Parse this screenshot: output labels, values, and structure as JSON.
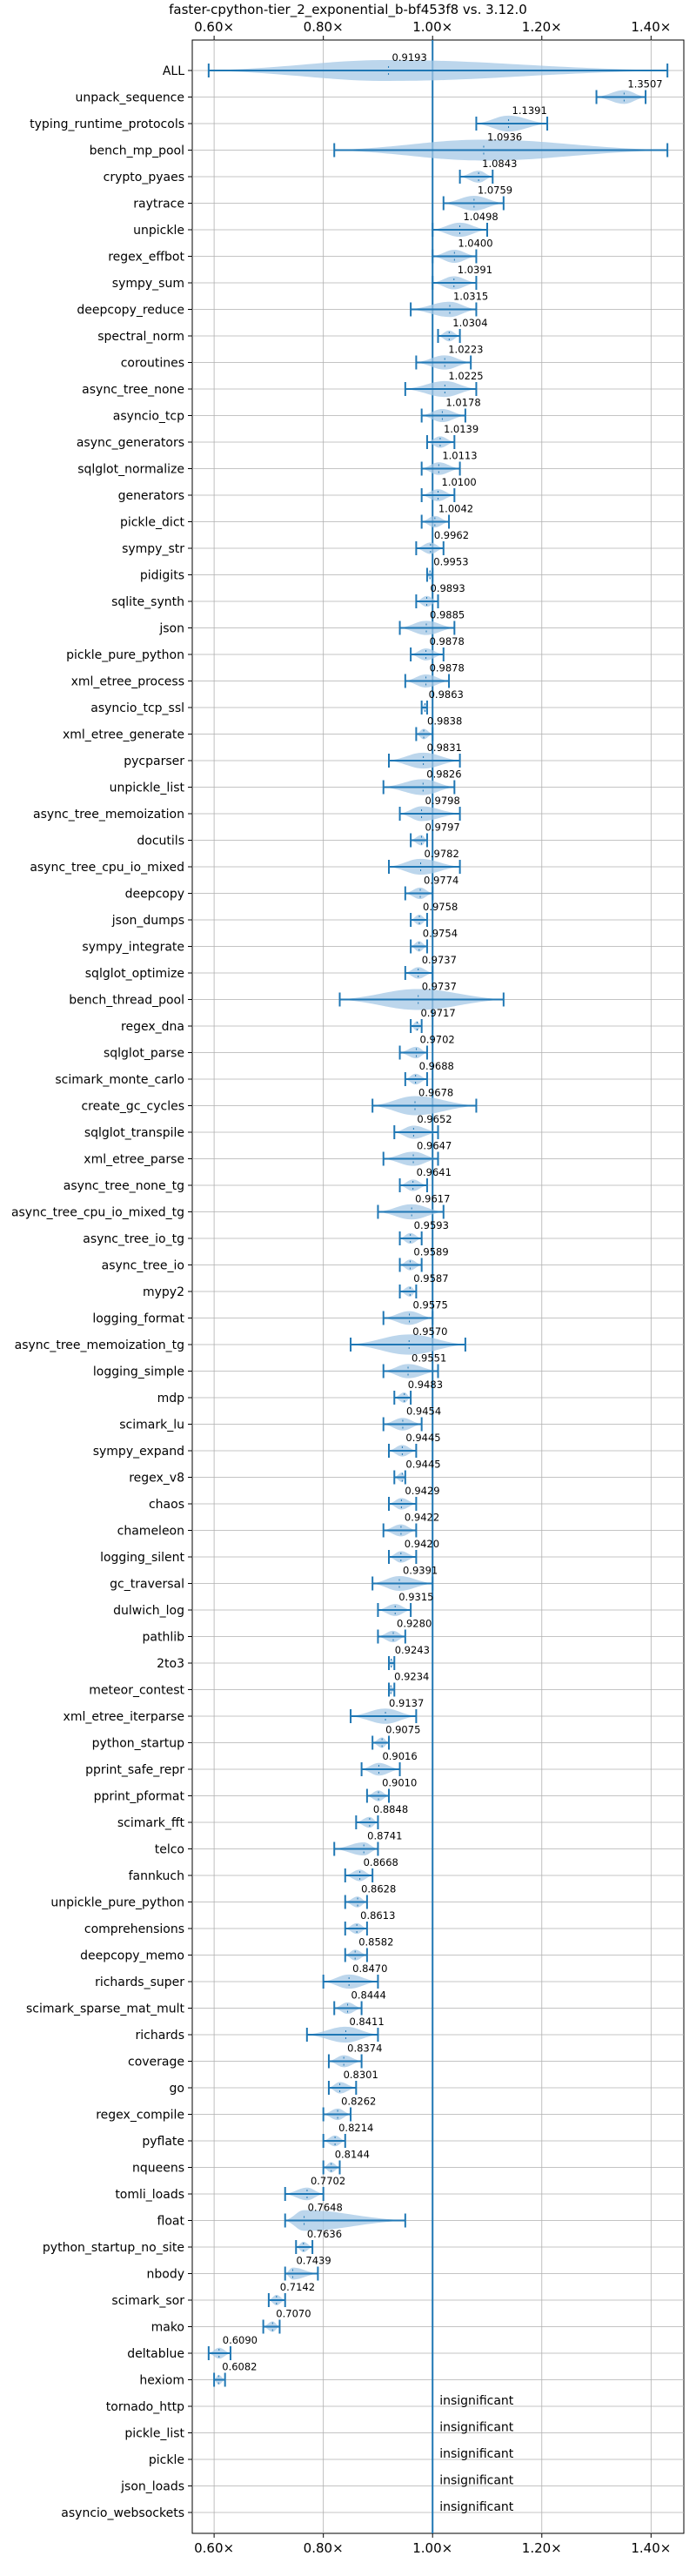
{
  "chart_data": {
    "type": "violin",
    "title": "faster-cpython-tier_2_exponential_b-bf453f8 vs. 3.12.0",
    "xlabel": "",
    "ylabel": "",
    "x_range": [
      0.56,
      1.46
    ],
    "x_scale": "linear",
    "ticks": [
      {
        "value": 0.6,
        "label": "0.60×"
      },
      {
        "value": 0.8,
        "label": "0.80×"
      },
      {
        "value": 1.0,
        "label": "1.00×"
      },
      {
        "value": 1.2,
        "label": "1.20×"
      },
      {
        "value": 1.4,
        "label": "1.40×"
      }
    ],
    "reference_line": 1.0,
    "grid": true,
    "colors": {
      "violin": "#a6c8e6",
      "line": "#1f77b4"
    },
    "benchmarks": [
      {
        "name": "ALL",
        "label": "0.9193",
        "value": 0.9193,
        "min": 0.59,
        "max": 1.43
      },
      {
        "name": "unpack_sequence",
        "label": "1.3507",
        "value": 1.3507,
        "min": 1.3,
        "max": 1.39
      },
      {
        "name": "typing_runtime_protocols",
        "label": "1.1391",
        "value": 1.1391,
        "min": 1.08,
        "max": 1.21
      },
      {
        "name": "bench_mp_pool",
        "label": "1.0936",
        "value": 1.0936,
        "min": 0.82,
        "max": 1.43
      },
      {
        "name": "crypto_pyaes",
        "label": "1.0843",
        "value": 1.0843,
        "min": 1.05,
        "max": 1.11
      },
      {
        "name": "raytrace",
        "label": "1.0759",
        "value": 1.0759,
        "min": 1.02,
        "max": 1.13
      },
      {
        "name": "unpickle",
        "label": "1.0498",
        "value": 1.0498,
        "min": 1.0,
        "max": 1.1
      },
      {
        "name": "regex_effbot",
        "label": "1.0400",
        "value": 1.04,
        "min": 1.0,
        "max": 1.08
      },
      {
        "name": "sympy_sum",
        "label": "1.0391",
        "value": 1.0391,
        "min": 1.0,
        "max": 1.08
      },
      {
        "name": "deepcopy_reduce",
        "label": "1.0315",
        "value": 1.0315,
        "min": 0.96,
        "max": 1.08
      },
      {
        "name": "spectral_norm",
        "label": "1.0304",
        "value": 1.0304,
        "min": 1.01,
        "max": 1.05
      },
      {
        "name": "coroutines",
        "label": "1.0223",
        "value": 1.0223,
        "min": 0.97,
        "max": 1.07
      },
      {
        "name": "async_tree_none",
        "label": "1.0225",
        "value": 1.0225,
        "min": 0.95,
        "max": 1.08
      },
      {
        "name": "asyncio_tcp",
        "label": "1.0178",
        "value": 1.0178,
        "min": 0.98,
        "max": 1.06
      },
      {
        "name": "async_generators",
        "label": "1.0139",
        "value": 1.0139,
        "min": 0.99,
        "max": 1.04
      },
      {
        "name": "sqlglot_normalize",
        "label": "1.0113",
        "value": 1.0113,
        "min": 0.98,
        "max": 1.05
      },
      {
        "name": "generators",
        "label": "1.0100",
        "value": 1.01,
        "min": 0.98,
        "max": 1.04
      },
      {
        "name": "pickle_dict",
        "label": "1.0042",
        "value": 1.0042,
        "min": 0.98,
        "max": 1.03
      },
      {
        "name": "sympy_str",
        "label": "0.9962",
        "value": 0.9962,
        "min": 0.97,
        "max": 1.02
      },
      {
        "name": "pidigits",
        "label": "0.9953",
        "value": 0.9953,
        "min": 0.99,
        "max": 1.0
      },
      {
        "name": "sqlite_synth",
        "label": "0.9893",
        "value": 0.9893,
        "min": 0.97,
        "max": 1.01
      },
      {
        "name": "json",
        "label": "0.9885",
        "value": 0.9885,
        "min": 0.94,
        "max": 1.04
      },
      {
        "name": "pickle_pure_python",
        "label": "0.9878",
        "value": 0.9878,
        "min": 0.96,
        "max": 1.02
      },
      {
        "name": "xml_etree_process",
        "label": "0.9878",
        "value": 0.9878,
        "min": 0.95,
        "max": 1.03
      },
      {
        "name": "asyncio_tcp_ssl",
        "label": "0.9863",
        "value": 0.9863,
        "min": 0.98,
        "max": 0.99
      },
      {
        "name": "xml_etree_generate",
        "label": "0.9838",
        "value": 0.9838,
        "min": 0.97,
        "max": 1.0
      },
      {
        "name": "pycparser",
        "label": "0.9831",
        "value": 0.9831,
        "min": 0.92,
        "max": 1.05
      },
      {
        "name": "unpickle_list",
        "label": "0.9826",
        "value": 0.9826,
        "min": 0.91,
        "max": 1.04
      },
      {
        "name": "async_tree_memoization",
        "label": "0.9798",
        "value": 0.9798,
        "min": 0.94,
        "max": 1.05
      },
      {
        "name": "docutils",
        "label": "0.9797",
        "value": 0.9797,
        "min": 0.96,
        "max": 0.99
      },
      {
        "name": "async_tree_cpu_io_mixed",
        "label": "0.9782",
        "value": 0.9782,
        "min": 0.92,
        "max": 1.05
      },
      {
        "name": "deepcopy",
        "label": "0.9774",
        "value": 0.9774,
        "min": 0.95,
        "max": 1.0
      },
      {
        "name": "json_dumps",
        "label": "0.9758",
        "value": 0.9758,
        "min": 0.96,
        "max": 0.99
      },
      {
        "name": "sympy_integrate",
        "label": "0.9754",
        "value": 0.9754,
        "min": 0.96,
        "max": 0.99
      },
      {
        "name": "sqlglot_optimize",
        "label": "0.9737",
        "value": 0.9737,
        "min": 0.95,
        "max": 1.0
      },
      {
        "name": "bench_thread_pool",
        "label": "0.9737",
        "value": 0.9737,
        "min": 0.83,
        "max": 1.13
      },
      {
        "name": "regex_dna",
        "label": "0.9717",
        "value": 0.9717,
        "min": 0.96,
        "max": 0.98
      },
      {
        "name": "sqlglot_parse",
        "label": "0.9702",
        "value": 0.9702,
        "min": 0.94,
        "max": 0.99
      },
      {
        "name": "scimark_monte_carlo",
        "label": "0.9688",
        "value": 0.9688,
        "min": 0.95,
        "max": 0.99
      },
      {
        "name": "create_gc_cycles",
        "label": "0.9678",
        "value": 0.9678,
        "min": 0.89,
        "max": 1.08
      },
      {
        "name": "sqlglot_transpile",
        "label": "0.9652",
        "value": 0.9652,
        "min": 0.93,
        "max": 1.01
      },
      {
        "name": "xml_etree_parse",
        "label": "0.9647",
        "value": 0.9647,
        "min": 0.91,
        "max": 1.01
      },
      {
        "name": "async_tree_none_tg",
        "label": "0.9641",
        "value": 0.9641,
        "min": 0.94,
        "max": 0.99
      },
      {
        "name": "async_tree_cpu_io_mixed_tg",
        "label": "0.9617",
        "value": 0.9617,
        "min": 0.9,
        "max": 1.02
      },
      {
        "name": "async_tree_io_tg",
        "label": "0.9593",
        "value": 0.9593,
        "min": 0.94,
        "max": 0.98
      },
      {
        "name": "async_tree_io",
        "label": "0.9589",
        "value": 0.9589,
        "min": 0.94,
        "max": 0.98
      },
      {
        "name": "mypy2",
        "label": "0.9587",
        "value": 0.9587,
        "min": 0.94,
        "max": 0.97
      },
      {
        "name": "logging_format",
        "label": "0.9575",
        "value": 0.9575,
        "min": 0.91,
        "max": 1.0
      },
      {
        "name": "async_tree_memoization_tg",
        "label": "0.9570",
        "value": 0.957,
        "min": 0.85,
        "max": 1.06
      },
      {
        "name": "logging_simple",
        "label": "0.9551",
        "value": 0.9551,
        "min": 0.91,
        "max": 1.01
      },
      {
        "name": "mdp",
        "label": "0.9483",
        "value": 0.9483,
        "min": 0.93,
        "max": 0.96
      },
      {
        "name": "scimark_lu",
        "label": "0.9454",
        "value": 0.9454,
        "min": 0.91,
        "max": 0.98
      },
      {
        "name": "sympy_expand",
        "label": "0.9445",
        "value": 0.9445,
        "min": 0.92,
        "max": 0.97
      },
      {
        "name": "regex_v8",
        "label": "0.9445",
        "value": 0.9445,
        "min": 0.93,
        "max": 0.95
      },
      {
        "name": "chaos",
        "label": "0.9429",
        "value": 0.9429,
        "min": 0.92,
        "max": 0.97
      },
      {
        "name": "chameleon",
        "label": "0.9422",
        "value": 0.9422,
        "min": 0.91,
        "max": 0.97
      },
      {
        "name": "logging_silent",
        "label": "0.9420",
        "value": 0.942,
        "min": 0.92,
        "max": 0.97
      },
      {
        "name": "gc_traversal",
        "label": "0.9391",
        "value": 0.9391,
        "min": 0.89,
        "max": 1.0
      },
      {
        "name": "dulwich_log",
        "label": "0.9315",
        "value": 0.9315,
        "min": 0.9,
        "max": 0.96
      },
      {
        "name": "pathlib",
        "label": "0.9280",
        "value": 0.928,
        "min": 0.9,
        "max": 0.95
      },
      {
        "name": "2to3",
        "label": "0.9243",
        "value": 0.9243,
        "min": 0.92,
        "max": 0.93
      },
      {
        "name": "meteor_contest",
        "label": "0.9234",
        "value": 0.9234,
        "min": 0.92,
        "max": 0.93
      },
      {
        "name": "xml_etree_iterparse",
        "label": "0.9137",
        "value": 0.9137,
        "min": 0.85,
        "max": 0.97
      },
      {
        "name": "python_startup",
        "label": "0.9075",
        "value": 0.9075,
        "min": 0.89,
        "max": 0.92
      },
      {
        "name": "pprint_safe_repr",
        "label": "0.9016",
        "value": 0.9016,
        "min": 0.87,
        "max": 0.94
      },
      {
        "name": "pprint_pformat",
        "label": "0.9010",
        "value": 0.901,
        "min": 0.88,
        "max": 0.92
      },
      {
        "name": "scimark_fft",
        "label": "0.8848",
        "value": 0.8848,
        "min": 0.86,
        "max": 0.9
      },
      {
        "name": "telco",
        "label": "0.8741",
        "value": 0.8741,
        "min": 0.82,
        "max": 0.9
      },
      {
        "name": "fannkuch",
        "label": "0.8668",
        "value": 0.8668,
        "min": 0.84,
        "max": 0.89
      },
      {
        "name": "unpickle_pure_python",
        "label": "0.8628",
        "value": 0.8628,
        "min": 0.84,
        "max": 0.88
      },
      {
        "name": "comprehensions",
        "label": "0.8613",
        "value": 0.8613,
        "min": 0.84,
        "max": 0.88
      },
      {
        "name": "deepcopy_memo",
        "label": "0.8582",
        "value": 0.8582,
        "min": 0.84,
        "max": 0.88
      },
      {
        "name": "richards_super",
        "label": "0.8470",
        "value": 0.847,
        "min": 0.8,
        "max": 0.9
      },
      {
        "name": "scimark_sparse_mat_mult",
        "label": "0.8444",
        "value": 0.8444,
        "min": 0.82,
        "max": 0.87
      },
      {
        "name": "richards",
        "label": "0.8411",
        "value": 0.8411,
        "min": 0.77,
        "max": 0.9
      },
      {
        "name": "coverage",
        "label": "0.8374",
        "value": 0.8374,
        "min": 0.81,
        "max": 0.87
      },
      {
        "name": "go",
        "label": "0.8301",
        "value": 0.8301,
        "min": 0.81,
        "max": 0.86
      },
      {
        "name": "regex_compile",
        "label": "0.8262",
        "value": 0.8262,
        "min": 0.8,
        "max": 0.85
      },
      {
        "name": "pyflate",
        "label": "0.8214",
        "value": 0.8214,
        "min": 0.8,
        "max": 0.84
      },
      {
        "name": "nqueens",
        "label": "0.8144",
        "value": 0.8144,
        "min": 0.8,
        "max": 0.83
      },
      {
        "name": "tomli_loads",
        "label": "0.7702",
        "value": 0.7702,
        "min": 0.73,
        "max": 0.8
      },
      {
        "name": "float",
        "label": "0.7648",
        "value": 0.7648,
        "min": 0.73,
        "max": 0.95
      },
      {
        "name": "python_startup_no_site",
        "label": "0.7636",
        "value": 0.7636,
        "min": 0.75,
        "max": 0.78
      },
      {
        "name": "nbody",
        "label": "0.7439",
        "value": 0.7439,
        "min": 0.73,
        "max": 0.79
      },
      {
        "name": "scimark_sor",
        "label": "0.7142",
        "value": 0.7142,
        "min": 0.7,
        "max": 0.73
      },
      {
        "name": "mako",
        "label": "0.7070",
        "value": 0.707,
        "min": 0.69,
        "max": 0.72
      },
      {
        "name": "deltablue",
        "label": "0.6090",
        "value": 0.609,
        "min": 0.59,
        "max": 0.63
      },
      {
        "name": "hexiom",
        "label": "0.6082",
        "value": 0.6082,
        "min": 0.6,
        "max": 0.62
      },
      {
        "name": "tornado_http",
        "label": "insignificant",
        "value": null,
        "min": null,
        "max": null
      },
      {
        "name": "pickle_list",
        "label": "insignificant",
        "value": null,
        "min": null,
        "max": null
      },
      {
        "name": "pickle",
        "label": "insignificant",
        "value": null,
        "min": null,
        "max": null
      },
      {
        "name": "json_loads",
        "label": "insignificant",
        "value": null,
        "min": null,
        "max": null
      },
      {
        "name": "asyncio_websockets",
        "label": "insignificant",
        "value": null,
        "min": null,
        "max": null
      }
    ]
  }
}
